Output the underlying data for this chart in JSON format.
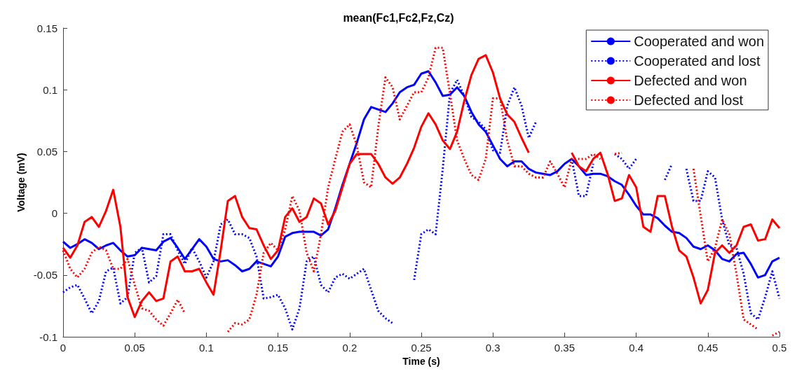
{
  "chart_data": {
    "type": "line",
    "title": "mean(Fc1,Fc2,Fz,Cz)",
    "xlabel": "Time (s)",
    "ylabel": "Voltage (mV)",
    "x": [
      0,
      0.005,
      0.01,
      0.015,
      0.02,
      0.025,
      0.03,
      0.035,
      0.04,
      0.045,
      0.05,
      0.055,
      0.06,
      0.065,
      0.07,
      0.075,
      0.08,
      0.085,
      0.09,
      0.095,
      0.1,
      0.105,
      0.11,
      0.115,
      0.12,
      0.125,
      0.13,
      0.135,
      0.14,
      0.145,
      0.15,
      0.155,
      0.16,
      0.165,
      0.17,
      0.175,
      0.18,
      0.185,
      0.19,
      0.195,
      0.2,
      0.205,
      0.21,
      0.215,
      0.22,
      0.225,
      0.23,
      0.235,
      0.24,
      0.245,
      0.25,
      0.255,
      0.26,
      0.265,
      0.27,
      0.275,
      0.28,
      0.285,
      0.29,
      0.295,
      0.3,
      0.305,
      0.31,
      0.315,
      0.32,
      0.325,
      0.33,
      0.335,
      0.34,
      0.345,
      0.35,
      0.355,
      0.36,
      0.365,
      0.37,
      0.375,
      0.38,
      0.385,
      0.39,
      0.395,
      0.4,
      0.405,
      0.41,
      0.415,
      0.42,
      0.425,
      0.43,
      0.435,
      0.44,
      0.445,
      0.45,
      0.455,
      0.46,
      0.465,
      0.47,
      0.475,
      0.48,
      0.485,
      0.49,
      0.495,
      0.5
    ],
    "series": [
      {
        "name": "Cooperated and won",
        "color": "#0000ff",
        "line_style": "solid",
        "values": [
          -0.023,
          -0.028,
          -0.025,
          -0.021,
          -0.024,
          -0.029,
          -0.026,
          -0.024,
          -0.03,
          -0.035,
          -0.034,
          -0.028,
          -0.029,
          -0.03,
          -0.023,
          -0.02,
          -0.028,
          -0.037,
          -0.029,
          -0.021,
          -0.027,
          -0.037,
          -0.039,
          -0.038,
          -0.042,
          -0.047,
          -0.045,
          -0.039,
          -0.041,
          -0.043,
          -0.035,
          -0.019,
          -0.016,
          -0.015,
          -0.015,
          -0.015,
          -0.018,
          -0.013,
          0.004,
          0.023,
          0.04,
          0.057,
          0.076,
          0.086,
          0.084,
          0.082,
          0.089,
          0.098,
          0.102,
          0.104,
          0.113,
          0.115,
          0.106,
          0.095,
          0.096,
          0.102,
          0.095,
          0.082,
          0.072,
          0.066,
          0.055,
          0.044,
          0.038,
          0.042,
          0.042,
          0.036,
          0.033,
          0.032,
          0.031,
          0.034,
          0.04,
          0.044,
          0.038,
          0.031,
          0.032,
          0.032,
          0.03,
          0.026,
          0.023,
          0.015,
          0.006,
          -0.001,
          -0.001,
          -0.004,
          -0.01,
          -0.015,
          -0.016,
          -0.02,
          -0.027,
          -0.029,
          -0.026,
          -0.03,
          -0.037,
          -0.039,
          -0.033,
          -0.032,
          -0.041,
          -0.052,
          -0.05,
          -0.039,
          -0.036
        ]
      },
      {
        "name": "Cooperated and lost",
        "color": "#0000ff",
        "line_style": "dotted",
        "values": [
          -0.064,
          -0.06,
          -0.058,
          -0.069,
          -0.081,
          -0.071,
          -0.047,
          -0.044,
          -0.073,
          -0.068,
          -0.032,
          -0.028,
          -0.056,
          -0.051,
          -0.017,
          -0.017,
          -0.03,
          -0.041,
          -0.028,
          -0.039,
          -0.052,
          -0.039,
          -0.009,
          -0.005,
          -0.017,
          -0.017,
          -0.02,
          -0.035,
          -0.069,
          -0.068,
          -0.066,
          -0.077,
          -0.094,
          -0.077,
          -0.039,
          -0.035,
          -0.058,
          -0.064,
          -0.052,
          -0.049,
          -0.053,
          -0.049,
          -0.045,
          -0.062,
          -0.079,
          -0.085,
          -0.089,
          null,
          null,
          -0.054,
          -0.017,
          -0.013,
          -0.017,
          0.036,
          0.097,
          0.108,
          0.095,
          0.078,
          0.074,
          0.068,
          0.051,
          0.049,
          0.087,
          0.102,
          0.087,
          0.061,
          0.074,
          null,
          null,
          null,
          null,
          0.044,
          0.014,
          0.014,
          0.04,
          null,
          null,
          0.048,
          0.044,
          0.036,
          0.044,
          null,
          null,
          null,
          0.027,
          0.04,
          null,
          0.036,
          0.01,
          0.01,
          0.034,
          0.029,
          -0.005,
          -0.026,
          -0.028,
          -0.049,
          -0.081,
          -0.086,
          -0.068,
          -0.047,
          -0.069
        ]
      },
      {
        "name": "Defected and won",
        "color": "#ff0000",
        "line_style": "solid",
        "values": [
          -0.028,
          -0.036,
          -0.026,
          -0.007,
          -0.003,
          -0.011,
          0.002,
          0.019,
          -0.011,
          -0.068,
          -0.084,
          -0.071,
          -0.064,
          -0.071,
          -0.069,
          -0.039,
          -0.035,
          -0.047,
          -0.047,
          -0.045,
          -0.056,
          -0.066,
          -0.03,
          0.01,
          0.014,
          -0.003,
          -0.012,
          -0.013,
          -0.026,
          -0.037,
          -0.03,
          -0.003,
          0.004,
          -0.007,
          -0.003,
          0.012,
          0.008,
          -0.009,
          0.002,
          0.021,
          0.04,
          0.048,
          0.048,
          0.048,
          0.04,
          0.029,
          0.024,
          0.029,
          0.04,
          0.053,
          0.07,
          0.081,
          0.072,
          0.059,
          0.052,
          0.066,
          0.091,
          0.112,
          0.125,
          0.128,
          0.114,
          0.093,
          0.08,
          0.074,
          0.061,
          0.049,
          null,
          null,
          null,
          null,
          null,
          0.049,
          0.038,
          0.034,
          0.044,
          0.049,
          0.032,
          0.01,
          0.012,
          0.031,
          0.021,
          -0.011,
          -0.015,
          0.014,
          0.014,
          -0.011,
          -0.03,
          -0.035,
          -0.052,
          -0.073,
          -0.062,
          -0.032,
          -0.026,
          -0.032,
          -0.026,
          -0.011,
          -0.009,
          -0.022,
          -0.021,
          -0.005,
          -0.012
        ]
      },
      {
        "name": "Defected and lost",
        "color": "#ff0000",
        "line_style": "dotted",
        "values": [
          -0.03,
          -0.045,
          -0.052,
          -0.045,
          -0.032,
          -0.027,
          -0.03,
          -0.045,
          -0.045,
          -0.037,
          -0.058,
          -0.077,
          -0.079,
          -0.086,
          -0.091,
          -0.081,
          -0.07,
          -0.081,
          null,
          null,
          null,
          null,
          null,
          -0.096,
          -0.089,
          -0.09,
          -0.086,
          -0.066,
          -0.032,
          -0.024,
          -0.03,
          -0.013,
          0.014,
          0.002,
          -0.032,
          -0.047,
          -0.017,
          0.021,
          0.044,
          0.066,
          0.072,
          0.055,
          0.025,
          0.021,
          0.07,
          0.11,
          0.102,
          0.076,
          0.087,
          0.098,
          0.098,
          0.11,
          0.134,
          0.134,
          0.097,
          0.059,
          0.044,
          0.031,
          0.027,
          0.044,
          0.093,
          0.093,
          0.059,
          0.038,
          0.038,
          0.032,
          0.029,
          0.029,
          0.042,
          0.032,
          0.021,
          0.044,
          0.044,
          0.044,
          0.048,
          0.044,
          null,
          0.048,
          0.049,
          null,
          null,
          null,
          null,
          null,
          null,
          null,
          null,
          null,
          0.036,
          -0.002,
          -0.039,
          -0.028,
          -0.005,
          -0.017,
          -0.049,
          -0.086,
          -0.09,
          -0.094,
          null,
          -0.099,
          -0.096
        ]
      }
    ],
    "xlim": [
      0,
      0.5
    ],
    "xticks": [
      0,
      0.05,
      0.1,
      0.15,
      0.2,
      0.25,
      0.3,
      0.35,
      0.4,
      0.45,
      0.5
    ],
    "ylim": [
      -0.1,
      0.15
    ],
    "yticks": [
      -0.1,
      -0.05,
      0,
      0.05,
      0.1,
      0.15
    ],
    "grid": false,
    "legend": "top right",
    "marker": "none"
  }
}
